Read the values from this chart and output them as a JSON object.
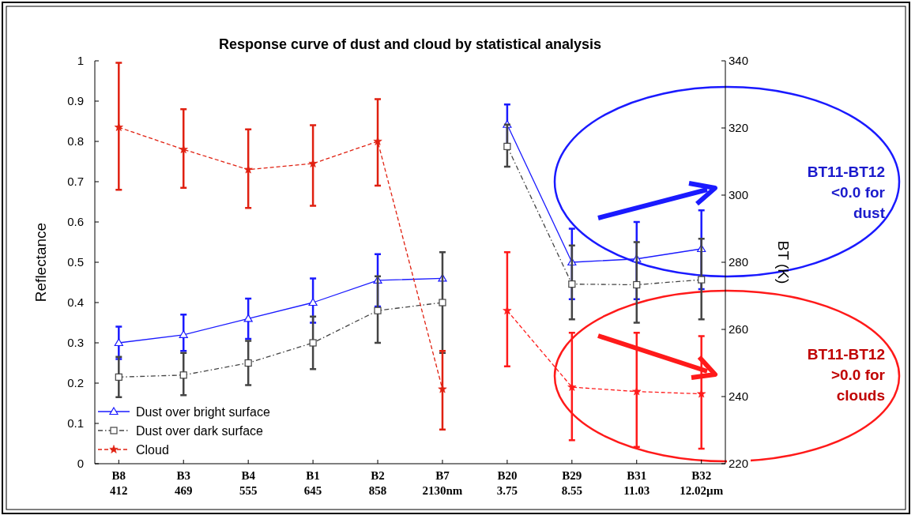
{
  "chart_data": {
    "type": "line",
    "title": "Response curve of dust and cloud by statistical analysis",
    "ylabel": "Reflectance",
    "y2label": "BT (K)",
    "categories": [
      "B8\n412",
      "B3\n469",
      "B4\n555",
      "B1\n645",
      "B2\n858",
      "B7\n2130nm",
      "B20\n3.75",
      "B29\n8.55",
      "B31\n11.03",
      "B32\n12.02µm"
    ],
    "ylim": [
      0,
      1
    ],
    "yticks": [
      0,
      0.1,
      0.2,
      0.3,
      0.4,
      0.5,
      0.6,
      0.7,
      0.8,
      0.9,
      1
    ],
    "y2lim": [
      220,
      340
    ],
    "y2ticks": [
      220,
      240,
      260,
      280,
      300,
      320,
      340
    ],
    "grid": false,
    "legend": "bottom left",
    "series": [
      {
        "name": "Dust over bright surface",
        "color": "#1a1aff",
        "marker": "triangle",
        "line_style": "solid",
        "values": [
          0.3,
          0.32,
          0.36,
          0.4,
          0.455,
          0.46,
          null,
          null,
          null,
          null
        ],
        "errors": [
          [
            0.26,
            0.34
          ],
          [
            0.28,
            0.37
          ],
          [
            0.31,
            0.41
          ],
          [
            0.35,
            0.46
          ],
          [
            0.39,
            0.52
          ],
          null,
          null,
          null,
          null,
          null
        ]
      },
      {
        "name": "Dust over dark surface",
        "color": "#444444",
        "marker": "square",
        "line_style": "dashdot",
        "values": [
          0.215,
          0.22,
          0.25,
          0.3,
          0.38,
          0.4,
          null,
          null,
          null,
          null
        ],
        "errors": [
          [
            0.165,
            0.265
          ],
          [
            0.17,
            0.275
          ],
          [
            0.195,
            0.305
          ],
          [
            0.235,
            0.365
          ],
          [
            0.3,
            0.465
          ],
          [
            0.275,
            0.525
          ],
          null,
          null,
          null,
          null
        ]
      },
      {
        "name": "Cloud",
        "color": "#e02010",
        "marker": "star",
        "line_style": "dashed",
        "values": [
          0.835,
          0.78,
          0.73,
          0.745,
          0.8,
          0.185,
          null,
          null,
          null,
          null
        ],
        "errors": [
          [
            0.68,
            0.995
          ],
          [
            0.685,
            0.88
          ],
          [
            0.635,
            0.83
          ],
          [
            0.64,
            0.84
          ],
          [
            0.69,
            0.905
          ],
          [
            0.085,
            0.28
          ],
          null,
          null,
          null,
          null
        ]
      },
      {
        "color": "#1a1aff",
        "marker": "triangle",
        "line_style": "solid",
        "axis": "y2",
        "values": [
          null,
          null,
          null,
          null,
          null,
          null,
          321,
          280,
          281,
          284
        ],
        "errors": [
          null,
          null,
          null,
          null,
          null,
          null,
          [
            315,
            327
          ],
          [
            269,
            290
          ],
          [
            269,
            292
          ],
          [
            272,
            295.5
          ]
        ]
      },
      {
        "color": "#444444",
        "marker": "square",
        "line_style": "dashdot",
        "axis": "y2",
        "values": [
          null,
          null,
          null,
          null,
          null,
          null,
          314.5,
          273.5,
          273.3,
          274.8
        ],
        "errors": [
          null,
          null,
          null,
          null,
          null,
          null,
          [
            308.5,
            321
          ],
          [
            263,
            285
          ],
          [
            262,
            286
          ],
          [
            263,
            287
          ]
        ]
      },
      {
        "color": "#ff1a1a",
        "marker": "star",
        "line_style": "dashed",
        "axis": "y2",
        "values": [
          null,
          null,
          null,
          null,
          null,
          null,
          265.6,
          242.8,
          241.5,
          240.8
        ],
        "errors": [
          null,
          null,
          null,
          null,
          null,
          null,
          [
            249,
            283
          ],
          [
            227,
            259
          ],
          [
            225,
            259
          ],
          [
            224.5,
            258
          ]
        ]
      }
    ],
    "annotations": [
      "BT11-BT12\n<0.0 for\ndust",
      "BT11-BT12\n>0.0 for\nclouds"
    ]
  }
}
